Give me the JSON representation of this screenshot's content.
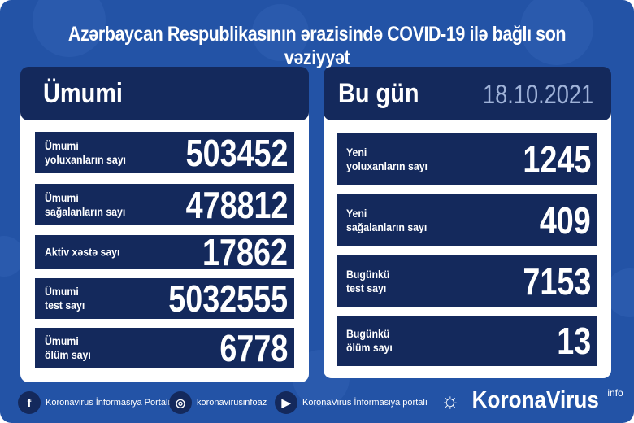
{
  "title": "Azərbaycan Respublikasının ərazisində COVID-19 ilə bağlı son vəziyyət",
  "colors": {
    "background": "#2353a6",
    "dark": "#14295c"
  },
  "left": {
    "heading": "Ümumi",
    "rows": [
      {
        "label": "Ümumi\nyoluxanların sayı",
        "value": "503452"
      },
      {
        "label": "Ümumi\nsağalanların sayı",
        "value": "478812"
      },
      {
        "label": "Aktiv xəstə sayı",
        "value": "17862"
      },
      {
        "label": "Ümumi\ntest sayı",
        "value": "5032555"
      },
      {
        "label": "Ümumi\nölüm sayı",
        "value": "6778"
      }
    ]
  },
  "right": {
    "heading": "Bu gün",
    "date": "18.10.2021",
    "rows": [
      {
        "label": "Yeni\nyoluxanların sayı",
        "value": "1245"
      },
      {
        "label": "Yeni\nsağalanların sayı",
        "value": "409"
      },
      {
        "label": "Bugünkü\ntest sayı",
        "value": "7153"
      },
      {
        "label": "Bugünkü\nölüm sayı",
        "value": "13"
      }
    ]
  },
  "footer": {
    "facebook": "Koronavirus İnformasiya Portalı",
    "instagram": "koronavirusinfoaz",
    "youtube": "KoronaVirus İnformasiya portalı",
    "brand": "KoronaVirus",
    "brand_sup": "info"
  }
}
